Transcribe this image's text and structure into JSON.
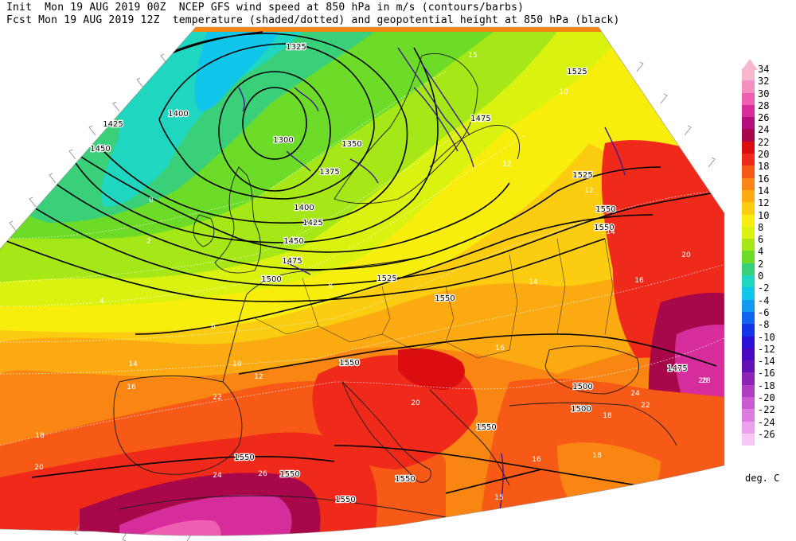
{
  "header": {
    "line1": "Init  Mon 19 AUG 2019 00Z  NCEP GFS wind speed at 850 hPa in m/s (contours/barbs)",
    "line2": "Fcst Mon 19 AUG 2019 12Z  temperature (shaded/dotted) and geopotential height at 850 hPa (black)"
  },
  "legend": {
    "unit": "deg. C",
    "levels": [
      {
        "label": "34",
        "color": "#f7b7cf"
      },
      {
        "label": "32",
        "color": "#f58fbf"
      },
      {
        "label": "30",
        "color": "#ee5fb2"
      },
      {
        "label": "28",
        "color": "#d62c9c"
      },
      {
        "label": "26",
        "color": "#b40e7e"
      },
      {
        "label": "24",
        "color": "#a8084a"
      },
      {
        "label": "22",
        "color": "#dc0d10"
      },
      {
        "label": "20",
        "color": "#ef2a1b"
      },
      {
        "label": "18",
        "color": "#f65a16"
      },
      {
        "label": "16",
        "color": "#f98612"
      },
      {
        "label": "14",
        "color": "#fbaa12"
      },
      {
        "label": "12",
        "color": "#fbcc10"
      },
      {
        "label": "10",
        "color": "#f8ee0e"
      },
      {
        "label": "8",
        "color": "#d9f20f"
      },
      {
        "label": "6",
        "color": "#a6e817"
      },
      {
        "label": "4",
        "color": "#6ddc28"
      },
      {
        "label": "2",
        "color": "#3ad07a"
      },
      {
        "label": "0",
        "color": "#1fd7c0"
      },
      {
        "label": "-2",
        "color": "#10c6ea"
      },
      {
        "label": "-4",
        "color": "#109bf0"
      },
      {
        "label": "-6",
        "color": "#1164f0"
      },
      {
        "label": "-8",
        "color": "#1235e8"
      },
      {
        "label": "-10",
        "color": "#2b10d8"
      },
      {
        "label": "-12",
        "color": "#4a08c0"
      },
      {
        "label": "-14",
        "color": "#6510b4"
      },
      {
        "label": "-16",
        "color": "#8e24b6"
      },
      {
        "label": "-18",
        "color": "#b03cc2"
      },
      {
        "label": "-20",
        "color": "#c95ad2"
      },
      {
        "label": "-22",
        "color": "#dc7ee0"
      },
      {
        "label": "-24",
        "color": "#eba2ec"
      },
      {
        "label": "-26",
        "color": "#f6c8f6"
      }
    ]
  },
  "height_labels": [
    {
      "text": "1325"
    },
    {
      "text": "1300"
    },
    {
      "text": "1350"
    },
    {
      "text": "1375"
    },
    {
      "text": "1400"
    },
    {
      "text": "1400"
    },
    {
      "text": "1425"
    },
    {
      "text": "1425"
    },
    {
      "text": "1450"
    },
    {
      "text": "1450"
    },
    {
      "text": "1475"
    },
    {
      "text": "1475"
    },
    {
      "text": "1500"
    },
    {
      "text": "1500"
    },
    {
      "text": "1525"
    },
    {
      "text": "1525"
    },
    {
      "text": "1525"
    },
    {
      "text": "1550"
    },
    {
      "text": "1550"
    },
    {
      "text": "1550"
    },
    {
      "text": "1550"
    },
    {
      "text": "1550"
    },
    {
      "text": "1550"
    },
    {
      "text": "1550"
    },
    {
      "text": "1550"
    },
    {
      "text": "1550"
    },
    {
      "text": "1475"
    },
    {
      "text": "1500"
    }
  ],
  "temp_labels": [
    {
      "text": "20"
    },
    {
      "text": "18"
    },
    {
      "text": "16"
    },
    {
      "text": "14"
    },
    {
      "text": "12"
    },
    {
      "text": "10"
    },
    {
      "text": "8"
    },
    {
      "text": "6"
    },
    {
      "text": "4"
    },
    {
      "text": "2"
    },
    {
      "text": "0"
    },
    {
      "text": "22"
    },
    {
      "text": "24"
    },
    {
      "text": "26"
    },
    {
      "text": "28"
    },
    {
      "text": "12"
    },
    {
      "text": "14"
    },
    {
      "text": "16"
    },
    {
      "text": "18"
    },
    {
      "text": "20"
    },
    {
      "text": "10"
    },
    {
      "text": "12"
    },
    {
      "text": "14"
    },
    {
      "text": "16"
    },
    {
      "text": "22"
    },
    {
      "text": "24"
    },
    {
      "text": "28"
    },
    {
      "text": "15"
    },
    {
      "text": "15"
    },
    {
      "text": "20"
    },
    {
      "text": "16"
    },
    {
      "text": "18"
    }
  ]
}
